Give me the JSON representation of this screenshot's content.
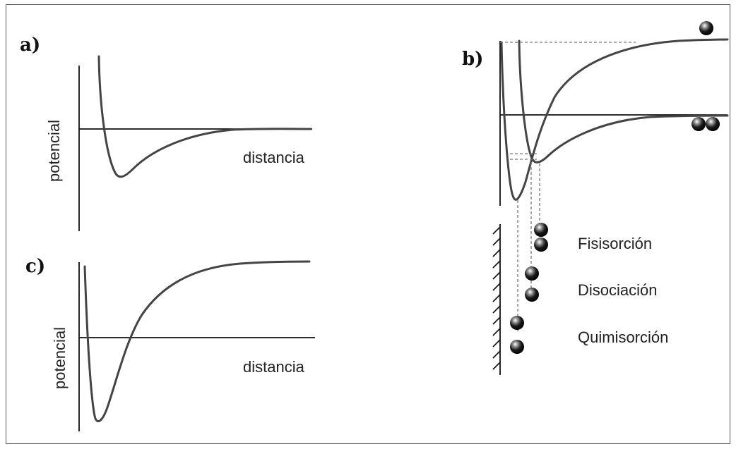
{
  "panels": {
    "a": {
      "letter": "a)",
      "ylabel": "potencial",
      "xlabel": "distancia"
    },
    "b": {
      "letter": "b)",
      "labels": [
        "Fisisorción",
        "Disociación",
        "Quimisorción"
      ]
    },
    "c": {
      "letter": "c)",
      "ylabel": "potencial",
      "xlabel": "distancia"
    }
  },
  "colors": {
    "curve": "#444444",
    "axis": "#111111",
    "sphere": "#1a1a1a"
  }
}
